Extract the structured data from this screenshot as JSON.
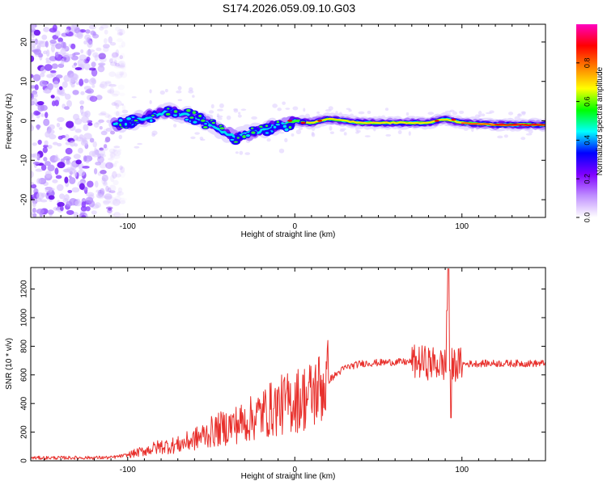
{
  "figure": {
    "title": "S174.2026.059.09.10.G03"
  },
  "chart_data": [
    {
      "type": "heatmap",
      "xlabel": "Height of straight line (km)",
      "ylabel": "Frequency (Hz)",
      "xlim": [
        -158,
        150
      ],
      "ylim": [
        -24.5,
        24.5
      ],
      "xticks": [
        -100,
        0,
        100
      ],
      "xtick_labels": [
        "-100",
        "0",
        "100"
      ],
      "yticks": [
        -20,
        -10,
        0,
        10,
        20
      ],
      "ytick_labels": [
        "-20",
        "-10",
        "0",
        "10",
        "20"
      ],
      "colorbar": {
        "label": "Normalized spectral amplitude",
        "range": [
          0,
          1
        ],
        "ticks": [
          0.0,
          0.2,
          0.4,
          0.6,
          0.8
        ],
        "tick_labels": [
          "0.0",
          "0.2",
          "0.4",
          "0.6",
          "0.8"
        ],
        "colors": [
          "#ffffff",
          "#c090ff",
          "#8000ff",
          "#0000ff",
          "#00ffff",
          "#00ff00",
          "#ffff00",
          "#ff8000",
          "#ff0000",
          "#ff00c0"
        ]
      },
      "ridge_center_freq": [
        {
          "x": -105,
          "y": -1.0
        },
        {
          "x": -95,
          "y": 0.0
        },
        {
          "x": -85,
          "y": 1.5
        },
        {
          "x": -75,
          "y": 2.5
        },
        {
          "x": -65,
          "y": 1.5
        },
        {
          "x": -55,
          "y": 0.0
        },
        {
          "x": -45,
          "y": -2.5
        },
        {
          "x": -35,
          "y": -4.0
        },
        {
          "x": -25,
          "y": -3.0
        },
        {
          "x": -15,
          "y": -1.5
        },
        {
          "x": -5,
          "y": -1.0
        },
        {
          "x": 0,
          "y": 0.0
        },
        {
          "x": 10,
          "y": -0.5
        },
        {
          "x": 20,
          "y": 0.5
        },
        {
          "x": 40,
          "y": -0.5
        },
        {
          "x": 60,
          "y": -0.5
        },
        {
          "x": 80,
          "y": -0.5
        },
        {
          "x": 90,
          "y": 0.5
        },
        {
          "x": 100,
          "y": -0.5
        },
        {
          "x": 120,
          "y": -1.0
        },
        {
          "x": 150,
          "y": -1.0
        }
      ],
      "noise_region_x": [
        -158,
        -110
      ]
    },
    {
      "type": "line",
      "xlabel": "Height of straight line (km)",
      "ylabel": "SNR (10 * v/v)",
      "xlim": [
        -158,
        150
      ],
      "ylim": [
        0,
        1350
      ],
      "xticks": [
        -100,
        0,
        100
      ],
      "xtick_labels": [
        "-100",
        "0",
        "100"
      ],
      "yticks": [
        0,
        200,
        400,
        600,
        800,
        1000,
        1200
      ],
      "ytick_labels": [
        "0",
        "200",
        "400",
        "600",
        "800",
        "1000",
        "1200"
      ],
      "color": "#e8302c",
      "envelope": [
        {
          "x": -158,
          "y": 20
        },
        {
          "x": -110,
          "y": 22
        },
        {
          "x": -100,
          "y": 40
        },
        {
          "x": -90,
          "y": 70
        },
        {
          "x": -80,
          "y": 100
        },
        {
          "x": -70,
          "y": 110
        },
        {
          "x": -60,
          "y": 150
        },
        {
          "x": -50,
          "y": 200
        },
        {
          "x": -40,
          "y": 240
        },
        {
          "x": -30,
          "y": 270
        },
        {
          "x": -20,
          "y": 330
        },
        {
          "x": -10,
          "y": 380
        },
        {
          "x": 0,
          "y": 420
        },
        {
          "x": 10,
          "y": 460
        },
        {
          "x": 20,
          "y": 560
        },
        {
          "x": 30,
          "y": 650
        },
        {
          "x": 40,
          "y": 680
        },
        {
          "x": 60,
          "y": 690
        },
        {
          "x": 75,
          "y": 690
        },
        {
          "x": 90,
          "y": 670
        },
        {
          "x": 110,
          "y": 680
        },
        {
          "x": 150,
          "y": 680
        }
      ]
    }
  ]
}
